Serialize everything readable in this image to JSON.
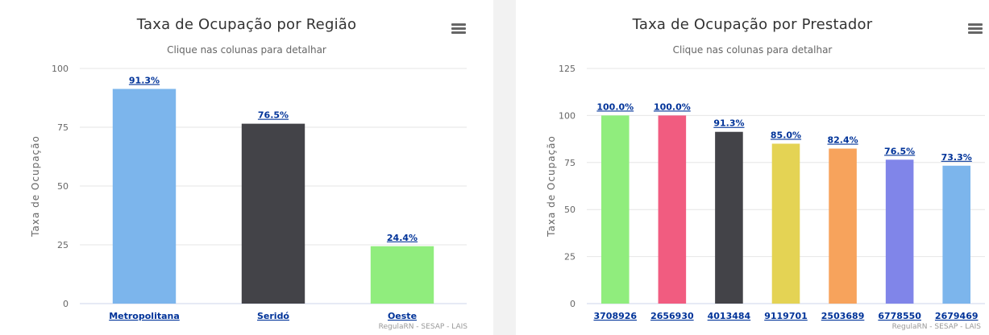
{
  "chart_data": [
    {
      "type": "bar",
      "title": "Taxa de Ocupação por Região",
      "subtitle": "Clique nas colunas para detalhar",
      "ylabel": "Taxa de Ocupação",
      "xlabel": "",
      "ylim": [
        0,
        100
      ],
      "yticks": [
        0,
        25,
        50,
        75,
        100
      ],
      "categories": [
        "Metropolitana",
        "Seridó",
        "Oeste"
      ],
      "values": [
        91.3,
        76.5,
        24.4
      ],
      "data_labels": [
        "91.3%",
        "76.5%",
        "24.4%"
      ],
      "colors": [
        "#7cb5ec",
        "#434348",
        "#90ed7d"
      ],
      "grid": true,
      "credits": "RegulaRN - SESAP - LAIS"
    },
    {
      "type": "bar",
      "title": "Taxa de Ocupação por Prestador",
      "subtitle": "Clique nas colunas para detalhar",
      "ylabel": "Taxa de Ocupação",
      "xlabel": "",
      "ylim": [
        0,
        125
      ],
      "yticks": [
        0,
        25,
        50,
        75,
        100,
        125
      ],
      "categories": [
        "3708926",
        "2656930",
        "4013484",
        "9119701",
        "2503689",
        "6778550",
        "2679469"
      ],
      "values": [
        100.0,
        100.0,
        91.3,
        85.0,
        82.4,
        76.5,
        73.3
      ],
      "data_labels": [
        "100.0%",
        "100.0%",
        "91.3%",
        "85.0%",
        "82.4%",
        "76.5%",
        "73.3%"
      ],
      "colors": [
        "#90ed7d",
        "#f15c80",
        "#434348",
        "#e4d354",
        "#f7a35c",
        "#8085e9",
        "#7cb5ec"
      ],
      "grid": true,
      "credits": "RegulaRN - SESAP - LAIS"
    }
  ]
}
